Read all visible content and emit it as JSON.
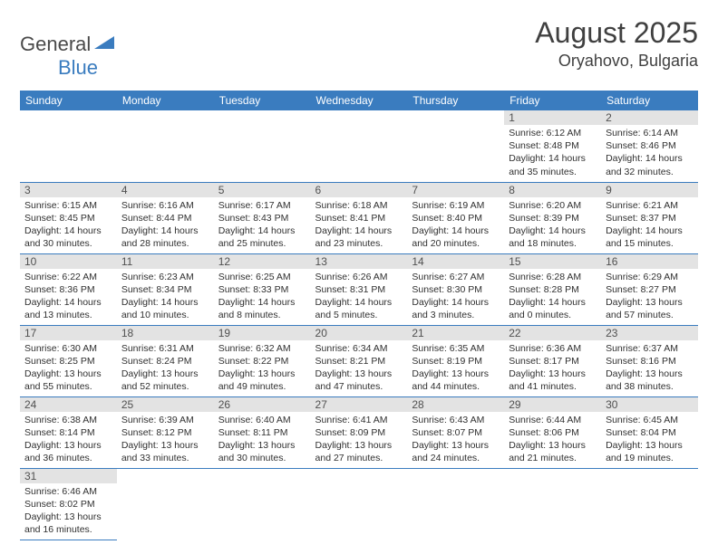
{
  "logo": {
    "text1": "General",
    "text2": "Blue"
  },
  "title": "August 2025",
  "location": "Oryahovo, Bulgaria",
  "colors": {
    "header_bg": "#3a7cbf",
    "header_fg": "#ffffff",
    "daynum_bg": "#e3e3e3",
    "border": "#3a7cbf",
    "text": "#303030"
  },
  "weekdays": [
    "Sunday",
    "Monday",
    "Tuesday",
    "Wednesday",
    "Thursday",
    "Friday",
    "Saturday"
  ],
  "weeks": [
    [
      null,
      null,
      null,
      null,
      null,
      {
        "n": "1",
        "sr": "Sunrise: 6:12 AM",
        "ss": "Sunset: 8:48 PM",
        "d1": "Daylight: 14 hours",
        "d2": "and 35 minutes."
      },
      {
        "n": "2",
        "sr": "Sunrise: 6:14 AM",
        "ss": "Sunset: 8:46 PM",
        "d1": "Daylight: 14 hours",
        "d2": "and 32 minutes."
      }
    ],
    [
      {
        "n": "3",
        "sr": "Sunrise: 6:15 AM",
        "ss": "Sunset: 8:45 PM",
        "d1": "Daylight: 14 hours",
        "d2": "and 30 minutes."
      },
      {
        "n": "4",
        "sr": "Sunrise: 6:16 AM",
        "ss": "Sunset: 8:44 PM",
        "d1": "Daylight: 14 hours",
        "d2": "and 28 minutes."
      },
      {
        "n": "5",
        "sr": "Sunrise: 6:17 AM",
        "ss": "Sunset: 8:43 PM",
        "d1": "Daylight: 14 hours",
        "d2": "and 25 minutes."
      },
      {
        "n": "6",
        "sr": "Sunrise: 6:18 AM",
        "ss": "Sunset: 8:41 PM",
        "d1": "Daylight: 14 hours",
        "d2": "and 23 minutes."
      },
      {
        "n": "7",
        "sr": "Sunrise: 6:19 AM",
        "ss": "Sunset: 8:40 PM",
        "d1": "Daylight: 14 hours",
        "d2": "and 20 minutes."
      },
      {
        "n": "8",
        "sr": "Sunrise: 6:20 AM",
        "ss": "Sunset: 8:39 PM",
        "d1": "Daylight: 14 hours",
        "d2": "and 18 minutes."
      },
      {
        "n": "9",
        "sr": "Sunrise: 6:21 AM",
        "ss": "Sunset: 8:37 PM",
        "d1": "Daylight: 14 hours",
        "d2": "and 15 minutes."
      }
    ],
    [
      {
        "n": "10",
        "sr": "Sunrise: 6:22 AM",
        "ss": "Sunset: 8:36 PM",
        "d1": "Daylight: 14 hours",
        "d2": "and 13 minutes."
      },
      {
        "n": "11",
        "sr": "Sunrise: 6:23 AM",
        "ss": "Sunset: 8:34 PM",
        "d1": "Daylight: 14 hours",
        "d2": "and 10 minutes."
      },
      {
        "n": "12",
        "sr": "Sunrise: 6:25 AM",
        "ss": "Sunset: 8:33 PM",
        "d1": "Daylight: 14 hours",
        "d2": "and 8 minutes."
      },
      {
        "n": "13",
        "sr": "Sunrise: 6:26 AM",
        "ss": "Sunset: 8:31 PM",
        "d1": "Daylight: 14 hours",
        "d2": "and 5 minutes."
      },
      {
        "n": "14",
        "sr": "Sunrise: 6:27 AM",
        "ss": "Sunset: 8:30 PM",
        "d1": "Daylight: 14 hours",
        "d2": "and 3 minutes."
      },
      {
        "n": "15",
        "sr": "Sunrise: 6:28 AM",
        "ss": "Sunset: 8:28 PM",
        "d1": "Daylight: 14 hours",
        "d2": "and 0 minutes."
      },
      {
        "n": "16",
        "sr": "Sunrise: 6:29 AM",
        "ss": "Sunset: 8:27 PM",
        "d1": "Daylight: 13 hours",
        "d2": "and 57 minutes."
      }
    ],
    [
      {
        "n": "17",
        "sr": "Sunrise: 6:30 AM",
        "ss": "Sunset: 8:25 PM",
        "d1": "Daylight: 13 hours",
        "d2": "and 55 minutes."
      },
      {
        "n": "18",
        "sr": "Sunrise: 6:31 AM",
        "ss": "Sunset: 8:24 PM",
        "d1": "Daylight: 13 hours",
        "d2": "and 52 minutes."
      },
      {
        "n": "19",
        "sr": "Sunrise: 6:32 AM",
        "ss": "Sunset: 8:22 PM",
        "d1": "Daylight: 13 hours",
        "d2": "and 49 minutes."
      },
      {
        "n": "20",
        "sr": "Sunrise: 6:34 AM",
        "ss": "Sunset: 8:21 PM",
        "d1": "Daylight: 13 hours",
        "d2": "and 47 minutes."
      },
      {
        "n": "21",
        "sr": "Sunrise: 6:35 AM",
        "ss": "Sunset: 8:19 PM",
        "d1": "Daylight: 13 hours",
        "d2": "and 44 minutes."
      },
      {
        "n": "22",
        "sr": "Sunrise: 6:36 AM",
        "ss": "Sunset: 8:17 PM",
        "d1": "Daylight: 13 hours",
        "d2": "and 41 minutes."
      },
      {
        "n": "23",
        "sr": "Sunrise: 6:37 AM",
        "ss": "Sunset: 8:16 PM",
        "d1": "Daylight: 13 hours",
        "d2": "and 38 minutes."
      }
    ],
    [
      {
        "n": "24",
        "sr": "Sunrise: 6:38 AM",
        "ss": "Sunset: 8:14 PM",
        "d1": "Daylight: 13 hours",
        "d2": "and 36 minutes."
      },
      {
        "n": "25",
        "sr": "Sunrise: 6:39 AM",
        "ss": "Sunset: 8:12 PM",
        "d1": "Daylight: 13 hours",
        "d2": "and 33 minutes."
      },
      {
        "n": "26",
        "sr": "Sunrise: 6:40 AM",
        "ss": "Sunset: 8:11 PM",
        "d1": "Daylight: 13 hours",
        "d2": "and 30 minutes."
      },
      {
        "n": "27",
        "sr": "Sunrise: 6:41 AM",
        "ss": "Sunset: 8:09 PM",
        "d1": "Daylight: 13 hours",
        "d2": "and 27 minutes."
      },
      {
        "n": "28",
        "sr": "Sunrise: 6:43 AM",
        "ss": "Sunset: 8:07 PM",
        "d1": "Daylight: 13 hours",
        "d2": "and 24 minutes."
      },
      {
        "n": "29",
        "sr": "Sunrise: 6:44 AM",
        "ss": "Sunset: 8:06 PM",
        "d1": "Daylight: 13 hours",
        "d2": "and 21 minutes."
      },
      {
        "n": "30",
        "sr": "Sunrise: 6:45 AM",
        "ss": "Sunset: 8:04 PM",
        "d1": "Daylight: 13 hours",
        "d2": "and 19 minutes."
      }
    ],
    [
      {
        "n": "31",
        "sr": "Sunrise: 6:46 AM",
        "ss": "Sunset: 8:02 PM",
        "d1": "Daylight: 13 hours",
        "d2": "and 16 minutes."
      },
      null,
      null,
      null,
      null,
      null,
      null
    ]
  ]
}
